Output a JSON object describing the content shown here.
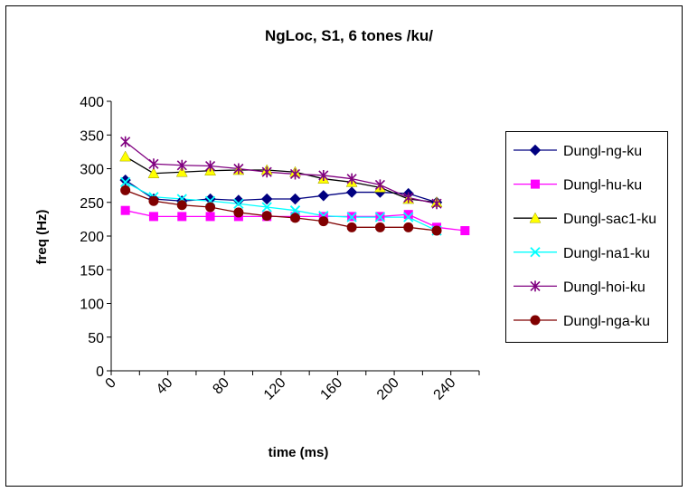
{
  "chart_data": {
    "type": "line",
    "title": "NgLoc, S1, 6 tones /ku/",
    "xlabel": "time (ms)",
    "ylabel": "freq (Hz)",
    "xlim": [
      0,
      260
    ],
    "ylim": [
      0,
      400
    ],
    "x_ticks": [
      0,
      20,
      40,
      60,
      80,
      100,
      120,
      140,
      160,
      180,
      200,
      220,
      240,
      260
    ],
    "x_tick_labels": [
      "0",
      "40",
      "80",
      "120",
      "160",
      "200",
      "240"
    ],
    "x_tick_label_values": [
      0,
      40,
      80,
      120,
      160,
      200,
      240
    ],
    "y_ticks": [
      0,
      50,
      100,
      150,
      200,
      250,
      300,
      350,
      400
    ],
    "y_tick_labels": [
      "0",
      "50",
      "100",
      "150",
      "200",
      "250",
      "300",
      "350",
      "400"
    ],
    "grid": false,
    "legend_position": "right",
    "series": [
      {
        "name": "Dungl-ng-ku",
        "color": "#000080",
        "marker": "diamond",
        "x": [
          10,
          30,
          50,
          70,
          90,
          110,
          130,
          150,
          170,
          190,
          210,
          230
        ],
        "y": [
          283,
          255,
          252,
          255,
          253,
          255,
          255,
          260,
          265,
          265,
          263,
          250
        ]
      },
      {
        "name": "Dungl-hu-ku",
        "color": "#FF00FF",
        "marker": "square",
        "x": [
          10,
          30,
          50,
          70,
          90,
          110,
          130,
          150,
          170,
          190,
          210,
          230,
          250
        ],
        "y": [
          238,
          229,
          229,
          229,
          229,
          229,
          229,
          229,
          229,
          229,
          232,
          213,
          208
        ]
      },
      {
        "name": "Dungl-sac1-ku",
        "color": "#FFFF00",
        "marker": "triangle",
        "x": [
          10,
          30,
          50,
          70,
          90,
          110,
          130,
          150,
          170,
          190,
          210,
          230
        ],
        "y": [
          318,
          293,
          295,
          297,
          298,
          298,
          295,
          285,
          280,
          272,
          255,
          250
        ]
      },
      {
        "name": "Dungl-na1-ku",
        "color": "#00FFFF",
        "marker": "x",
        "x": [
          10,
          30,
          50,
          70,
          90,
          110,
          130,
          150,
          170,
          190,
          210,
          230
        ],
        "y": [
          280,
          258,
          255,
          252,
          248,
          243,
          238,
          230,
          228,
          228,
          228,
          208
        ]
      },
      {
        "name": "Dungl-hoi-ku",
        "color": "#800080",
        "marker": "asterisk",
        "x": [
          10,
          30,
          50,
          70,
          90,
          110,
          130,
          150,
          170,
          190,
          210,
          230
        ],
        "y": [
          340,
          307,
          305,
          304,
          300,
          295,
          292,
          290,
          285,
          276,
          257,
          248
        ]
      },
      {
        "name": "Dungl-nga-ku",
        "color": "#800000",
        "marker": "circle",
        "x": [
          10,
          30,
          50,
          70,
          90,
          110,
          130,
          150,
          170,
          190,
          210,
          230
        ],
        "y": [
          268,
          252,
          246,
          243,
          235,
          230,
          227,
          222,
          213,
          213,
          213,
          208
        ]
      }
    ]
  }
}
